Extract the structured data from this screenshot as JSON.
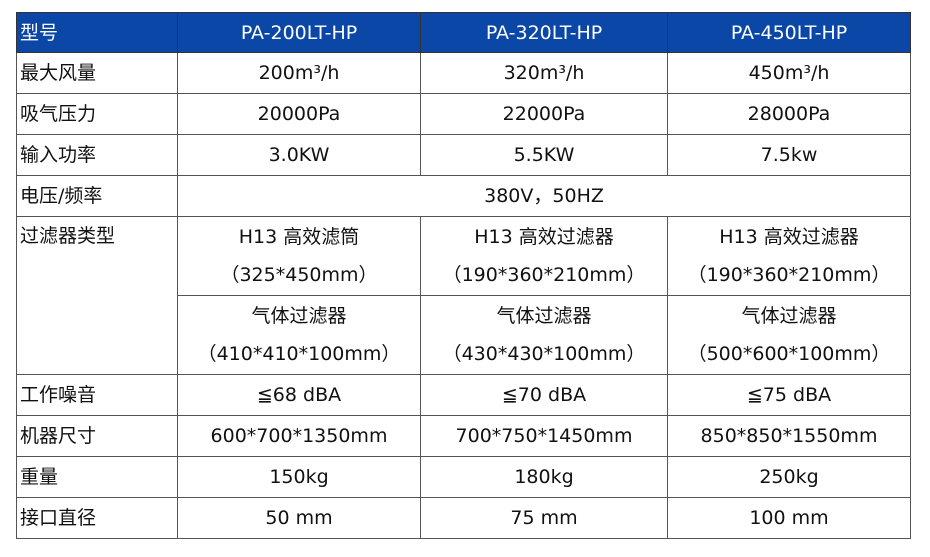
{
  "header": {
    "label": "型号",
    "models": [
      "PA-200LT-HP",
      "PA-320LT-HP",
      "PA-450LT-HP"
    ]
  },
  "header_color": "#0b47a6",
  "rows": {
    "airflow": {
      "label": "最大风量",
      "values": [
        "200m³/h",
        "320m³/h",
        "450m³/h"
      ]
    },
    "pressure": {
      "label": "吸气压力",
      "values": [
        "20000Pa",
        "22000Pa",
        "28000Pa"
      ]
    },
    "power": {
      "label": "输入功率",
      "values": [
        "3.0KW",
        "5.5KW",
        "7.5kw"
      ]
    },
    "voltage": {
      "label": "电压/频率",
      "value": "380V，50HZ"
    },
    "filter": {
      "label": "过滤器类型",
      "primary": [
        {
          "name": "H13 高效滤筒",
          "size": "（325*450mm）"
        },
        {
          "name": "H13 高效过滤器",
          "size": "（190*360*210mm）"
        },
        {
          "name": "H13 高效过滤器",
          "size": "（190*360*210mm）"
        }
      ],
      "secondary": [
        {
          "name": "气体过滤器",
          "size": "（410*410*100mm）"
        },
        {
          "name": "气体过滤器",
          "size": "（430*430*100mm）"
        },
        {
          "name": "气体过滤器",
          "size": "（500*600*100mm）"
        }
      ]
    },
    "noise": {
      "label": "工作噪音",
      "values": [
        "≦68 dBA",
        "≦70 dBA",
        "≦75 dBA"
      ]
    },
    "dimensions": {
      "label": "机器尺寸",
      "values": [
        "600*700*1350mm",
        "700*750*1450mm",
        "850*850*1550mm"
      ]
    },
    "weight": {
      "label": "重量",
      "values": [
        "150kg",
        "180kg",
        "250kg"
      ]
    },
    "port": {
      "label": "接口直径",
      "values": [
        "50 mm",
        "75 mm",
        "100 mm"
      ]
    }
  }
}
